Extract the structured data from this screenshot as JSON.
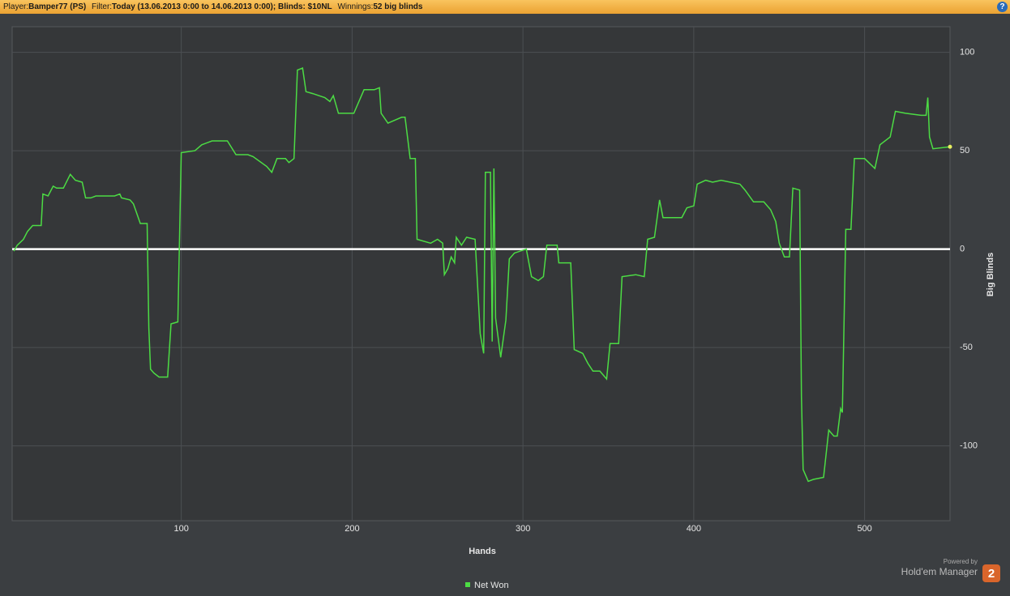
{
  "header": {
    "player_label": "Player:",
    "player": "Bamper77 (PS)",
    "filter_label": "Filter:",
    "filter": "Today (13.06.2013 0:00 to 14.06.2013 0:00); Blinds: $10NL",
    "winnings_label": "Winnings:",
    "winnings": "52 big blinds",
    "help": "?"
  },
  "branding": {
    "powered": "Powered by",
    "product": "Hold'em Manager",
    "version": "2"
  },
  "chart_data": {
    "type": "line",
    "xlabel": "Hands",
    "ylabel": "Big Blinds",
    "xlim": [
      1,
      550
    ],
    "ylim": [
      -138,
      113
    ],
    "xticks": [
      100,
      200,
      300,
      400,
      500
    ],
    "yticks": [
      -100,
      -50,
      0,
      50,
      100
    ],
    "grid": true,
    "zero_line": true,
    "legend": "bottom",
    "x": [
      2,
      4,
      7.6,
      10,
      13,
      18,
      19,
      22,
      25,
      27,
      31,
      35,
      38,
      42,
      44,
      47,
      50,
      61,
      64,
      65,
      70,
      72,
      76,
      80,
      81,
      82,
      84,
      87,
      92,
      94,
      98,
      100,
      108,
      112,
      118,
      127,
      132,
      139,
      142,
      150,
      153,
      156,
      161,
      163,
      166,
      168,
      171,
      173,
      177,
      184,
      187,
      189,
      192,
      201,
      203,
      207,
      213,
      216,
      217,
      221,
      229,
      231,
      234,
      237,
      238,
      246,
      250,
      253,
      254,
      256,
      258,
      260,
      261,
      264,
      267,
      272,
      275,
      277,
      278,
      281,
      282,
      283,
      284,
      287,
      290,
      292,
      295,
      302,
      305,
      309,
      312,
      314,
      320,
      321,
      328,
      330,
      335,
      338,
      341,
      345,
      349,
      351,
      356,
      358,
      366,
      371,
      373,
      377,
      380,
      382,
      393,
      396,
      400,
      402,
      407,
      411,
      416,
      427,
      430,
      435,
      441,
      445,
      448,
      450,
      453,
      456,
      458,
      462,
      463,
      464,
      467,
      470,
      476,
      479,
      482,
      484,
      486,
      487,
      489,
      492,
      494,
      500,
      506,
      509,
      515,
      518,
      524,
      533,
      536,
      537,
      538,
      540,
      550
    ],
    "series": [
      {
        "name": "Net Won",
        "color": "#4cdc44",
        "values": [
          -1,
          2,
          5,
          9,
          12,
          12,
          28,
          27,
          32,
          31,
          31,
          38,
          35,
          34,
          26,
          26,
          27,
          27,
          28,
          26,
          25,
          23,
          13,
          13,
          -40,
          -61,
          -63,
          -65,
          -65,
          -38,
          -37,
          49,
          50,
          53,
          55,
          55,
          48,
          48,
          47,
          42,
          39,
          46,
          46,
          44,
          46,
          91,
          92,
          80,
          79,
          77,
          75,
          78,
          69,
          69,
          73,
          81,
          81,
          82,
          69,
          64,
          67,
          67,
          46,
          46,
          5,
          3,
          5,
          3,
          -13,
          -10,
          -4,
          -7,
          6,
          2,
          6,
          5,
          -43,
          -53,
          39,
          39,
          -47,
          41,
          -35,
          -55,
          -36,
          -5,
          -2,
          0,
          -14,
          -16,
          -14,
          2,
          2,
          -7,
          -7,
          -51,
          -53,
          -58,
          -62,
          -62,
          -66,
          -48,
          -48,
          -14,
          -13,
          -14,
          5,
          6,
          25,
          16,
          16,
          21,
          22,
          33,
          35,
          34,
          35,
          33,
          30,
          24,
          24,
          20,
          14,
          3,
          -4,
          -4,
          31,
          30,
          -75,
          -112,
          -118,
          -117,
          -116,
          -92,
          -95,
          -95,
          -81,
          -83,
          10,
          10,
          46,
          46,
          41,
          53,
          57,
          70,
          69,
          68,
          68,
          77,
          57,
          51,
          52
        ]
      }
    ]
  }
}
